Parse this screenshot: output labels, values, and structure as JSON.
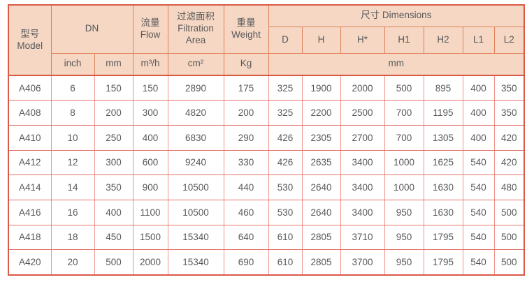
{
  "colors": {
    "header_bg": "#f5d7c4",
    "header_border": "#e0825a",
    "outer_border": "#d95a47",
    "grid_border": "#ee948d",
    "grid_border_h": "#e4736c",
    "text": "#595959"
  },
  "table": {
    "header": {
      "model": "型号\nModel",
      "dn": "DN",
      "flow": "流量\nFlow",
      "filtration_area": "过滤面积\nFiltration\nArea",
      "weight": "重量\nWeight",
      "dimensions": "尺寸 Dimensions",
      "dim_cols": [
        "D",
        "H",
        "H*",
        "H1",
        "H2",
        "L1",
        "L2"
      ],
      "units": {
        "dn_inch": "inch",
        "dn_mm": "mm",
        "flow": "m³/h",
        "filtration_area": "cm²",
        "weight": "Kg",
        "dimensions": "mm"
      }
    }
  },
  "chart_data": {
    "type": "table",
    "title": "",
    "columns": [
      "型号 Model",
      "DN inch",
      "DN mm",
      "流量 Flow m³/h",
      "过滤面积 Filtration Area cm²",
      "重量 Weight Kg",
      "D mm",
      "H mm",
      "H* mm",
      "H1 mm",
      "H2 mm",
      "L1 mm",
      "L2 mm"
    ],
    "rows": [
      [
        "A406",
        6,
        150,
        150,
        2890,
        175,
        325,
        1900,
        2000,
        500,
        895,
        400,
        350
      ],
      [
        "A408",
        8,
        200,
        300,
        4820,
        200,
        325,
        2200,
        2500,
        700,
        1195,
        400,
        350
      ],
      [
        "A410",
        10,
        250,
        400,
        6830,
        290,
        426,
        2305,
        2700,
        700,
        1305,
        400,
        420
      ],
      [
        "A412",
        12,
        300,
        600,
        9240,
        330,
        426,
        2635,
        3400,
        1000,
        1625,
        540,
        420
      ],
      [
        "A414",
        14,
        350,
        900,
        10500,
        440,
        530,
        2640,
        3400,
        1000,
        1630,
        540,
        480
      ],
      [
        "A416",
        16,
        400,
        1100,
        10500,
        460,
        530,
        2640,
        3400,
        950,
        1630,
        540,
        500
      ],
      [
        "A418",
        18,
        450,
        1500,
        15340,
        640,
        610,
        2805,
        3710,
        950,
        1795,
        540,
        500
      ],
      [
        "A420",
        20,
        500,
        2000,
        15340,
        690,
        610,
        2805,
        3700,
        950,
        1795,
        540,
        500
      ]
    ]
  }
}
